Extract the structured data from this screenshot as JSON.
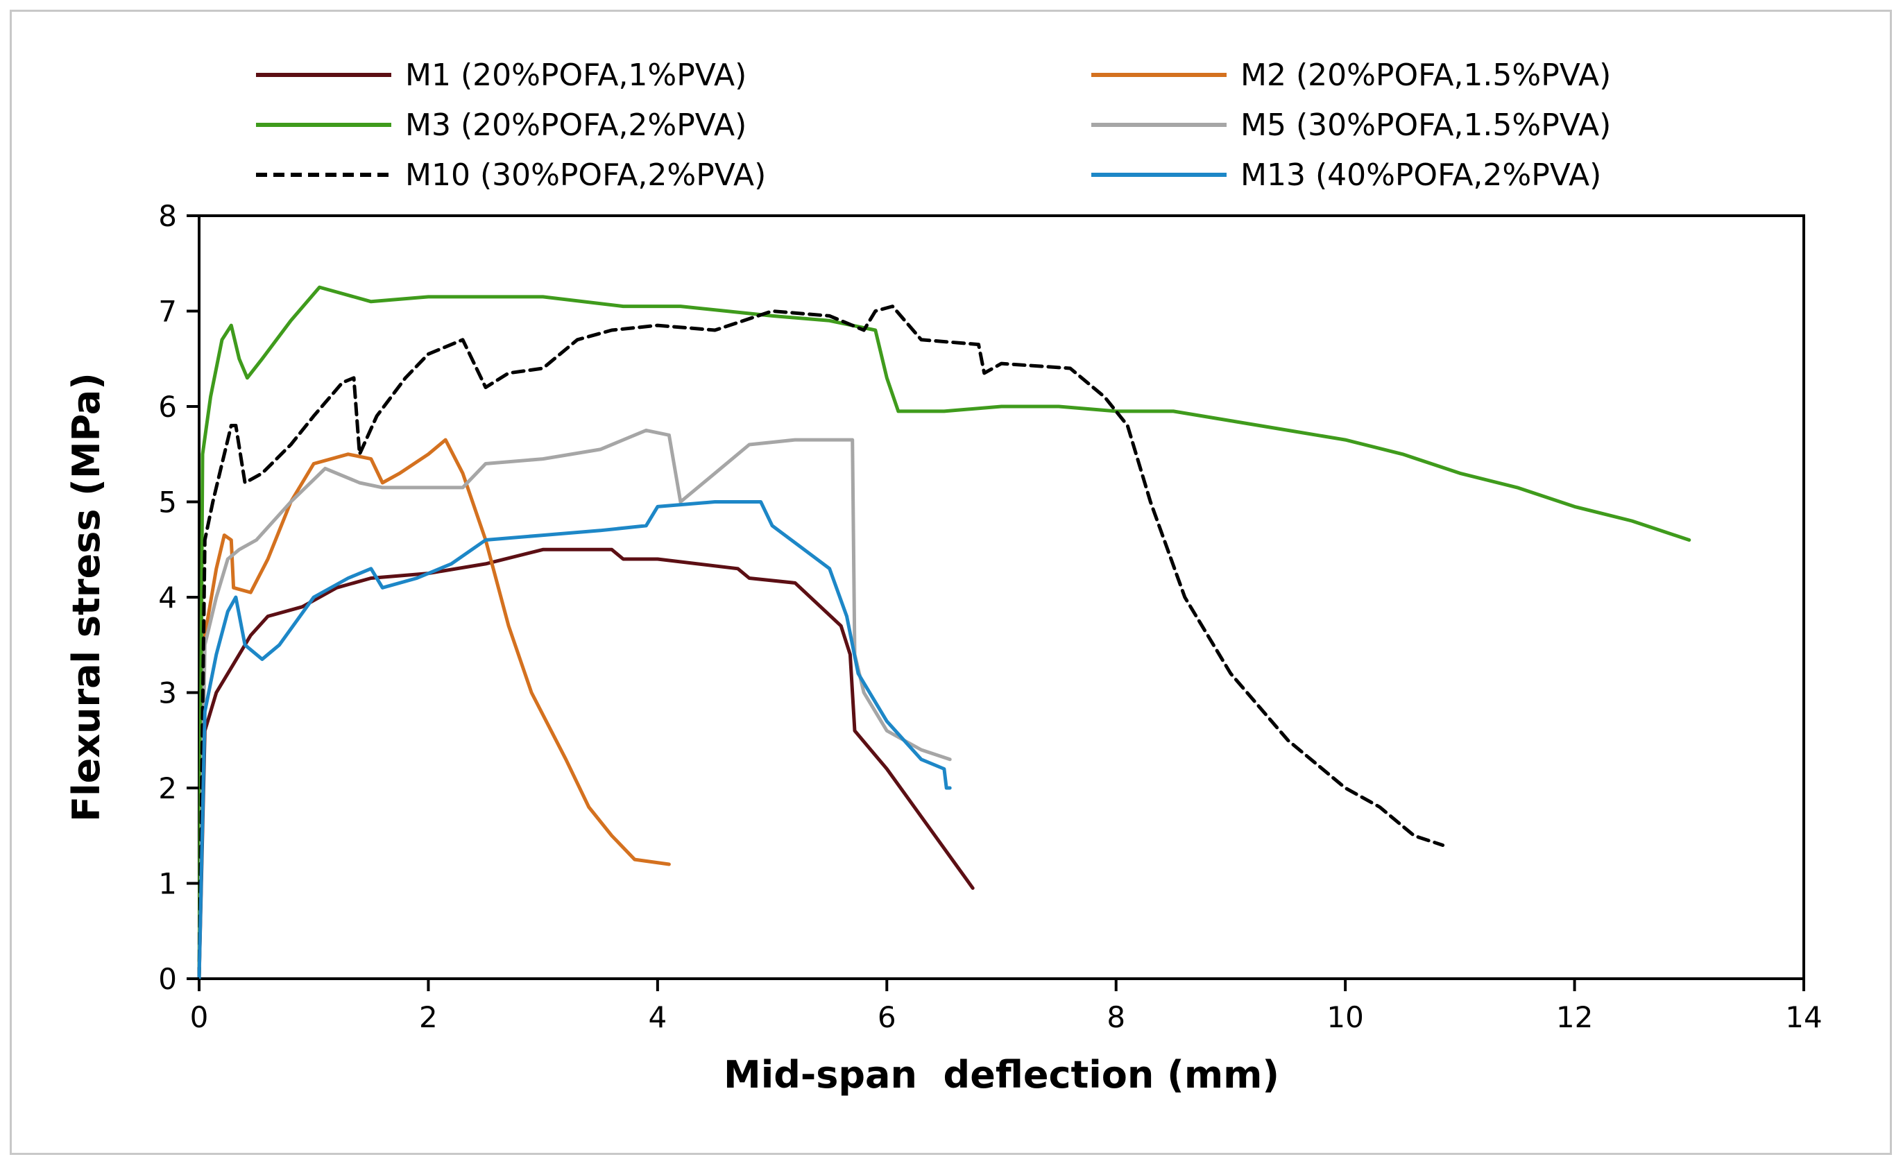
{
  "chart_data": {
    "type": "line",
    "title": "",
    "xlabel": "Mid-span  deflection (mm)",
    "ylabel": "Flexural stress (MPa)",
    "xlim": [
      0,
      14
    ],
    "ylim": [
      0,
      8
    ],
    "xticks": [
      0,
      2,
      4,
      6,
      8,
      10,
      12,
      14
    ],
    "yticks": [
      0,
      1,
      2,
      3,
      4,
      5,
      6,
      7,
      8
    ],
    "xtick_labels": [
      "0",
      "2",
      "4",
      "6",
      "8",
      "10",
      "12",
      "14"
    ],
    "ytick_labels": [
      "0",
      "1",
      "2",
      "3",
      "4",
      "5",
      "6",
      "7",
      "8"
    ],
    "grid": false,
    "legend_position": "top",
    "series": [
      {
        "name": "M1 (20%POFA,1%PVA)",
        "color": "#5c0f14",
        "dash": "solid",
        "x": [
          0,
          0.05,
          0.15,
          0.3,
          0.45,
          0.6,
          0.9,
          1.2,
          1.5,
          2.0,
          2.5,
          3.0,
          3.6,
          3.7,
          4.0,
          4.7,
          4.8,
          5.2,
          5.6,
          5.68,
          5.72,
          6.0,
          6.3,
          6.6,
          6.75
        ],
        "y": [
          0,
          2.6,
          3.0,
          3.3,
          3.6,
          3.8,
          3.9,
          4.1,
          4.2,
          4.25,
          4.35,
          4.5,
          4.5,
          4.4,
          4.4,
          4.3,
          4.2,
          4.15,
          3.7,
          3.4,
          2.6,
          2.2,
          1.7,
          1.2,
          0.95
        ]
      },
      {
        "name": "M2 (20%POFA,1.5%PVA)",
        "color": "#d4711f",
        "dash": "solid",
        "x": [
          0,
          0.05,
          0.15,
          0.22,
          0.28,
          0.3,
          0.45,
          0.6,
          0.8,
          1.0,
          1.3,
          1.5,
          1.6,
          1.75,
          2.0,
          2.15,
          2.3,
          2.5,
          2.7,
          2.9,
          3.2,
          3.4,
          3.6,
          3.8,
          4.1
        ],
        "y": [
          0,
          3.6,
          4.3,
          4.65,
          4.6,
          4.1,
          4.05,
          4.4,
          5.0,
          5.4,
          5.5,
          5.45,
          5.2,
          5.3,
          5.5,
          5.65,
          5.3,
          4.6,
          3.7,
          3.0,
          2.3,
          1.8,
          1.5,
          1.25,
          1.2
        ]
      },
      {
        "name": "M3 (20%POFA,2%PVA)",
        "color": "#3f9b1c",
        "dash": "solid",
        "x": [
          0,
          0.03,
          0.1,
          0.2,
          0.28,
          0.35,
          0.42,
          0.55,
          0.8,
          1.05,
          1.2,
          1.5,
          2.0,
          3.0,
          3.7,
          4.2,
          5.0,
          5.5,
          5.9,
          6.0,
          6.1,
          6.5,
          7.0,
          7.5,
          8.0,
          8.5,
          9.0,
          9.5,
          10.0,
          10.5,
          11.0,
          11.5,
          12.0,
          12.5,
          13.0
        ],
        "y": [
          0,
          5.5,
          6.1,
          6.7,
          6.85,
          6.5,
          6.3,
          6.5,
          6.9,
          7.25,
          7.2,
          7.1,
          7.15,
          7.15,
          7.05,
          7.05,
          6.95,
          6.9,
          6.8,
          6.3,
          5.95,
          5.95,
          6.0,
          6.0,
          5.95,
          5.95,
          5.85,
          5.75,
          5.65,
          5.5,
          5.3,
          5.15,
          4.95,
          4.8,
          4.6
        ]
      },
      {
        "name": "M5 (30%POFA,1.5%PVA)",
        "color": "#a6a6a6",
        "dash": "solid",
        "x": [
          0,
          0.05,
          0.15,
          0.25,
          0.35,
          0.5,
          0.8,
          1.1,
          1.4,
          1.6,
          1.8,
          2.3,
          2.5,
          3.0,
          3.5,
          3.9,
          4.1,
          4.2,
          4.5,
          4.8,
          5.2,
          5.7,
          5.72,
          5.8,
          6.0,
          6.3,
          6.55
        ],
        "y": [
          0,
          3.5,
          4.0,
          4.4,
          4.5,
          4.6,
          5.0,
          5.35,
          5.2,
          5.15,
          5.15,
          5.15,
          5.4,
          5.45,
          5.55,
          5.75,
          5.7,
          5.0,
          5.3,
          5.6,
          5.65,
          5.65,
          3.4,
          3.0,
          2.6,
          2.4,
          2.3
        ]
      },
      {
        "name": "M10 (30%POFA,2%PVA)",
        "color": "#000000",
        "dash": "dashed",
        "x": [
          0,
          0.05,
          0.12,
          0.2,
          0.28,
          0.32,
          0.4,
          0.55,
          0.8,
          1.0,
          1.25,
          1.35,
          1.4,
          1.55,
          1.8,
          2.0,
          2.3,
          2.5,
          2.7,
          3.0,
          3.3,
          3.6,
          4.0,
          4.5,
          5.0,
          5.5,
          5.8,
          5.9,
          6.05,
          6.3,
          6.8,
          6.85,
          7.0,
          7.6,
          7.9,
          8.1,
          8.3,
          8.6,
          9.0,
          9.5,
          10.0,
          10.3,
          10.6,
          10.85
        ],
        "y": [
          0,
          4.6,
          5.0,
          5.4,
          5.8,
          5.8,
          5.2,
          5.3,
          5.6,
          5.9,
          6.25,
          6.3,
          5.5,
          5.9,
          6.3,
          6.55,
          6.7,
          6.2,
          6.35,
          6.4,
          6.7,
          6.8,
          6.85,
          6.8,
          7.0,
          6.95,
          6.8,
          7.0,
          7.05,
          6.7,
          6.65,
          6.35,
          6.45,
          6.4,
          6.1,
          5.8,
          5.0,
          4.0,
          3.2,
          2.5,
          2.0,
          1.8,
          1.5,
          1.4
        ]
      },
      {
        "name": "M13 (40%POFA,2%PVA)",
        "color": "#1d87c7",
        "dash": "solid",
        "x": [
          0,
          0.05,
          0.15,
          0.25,
          0.32,
          0.4,
          0.55,
          0.7,
          1.0,
          1.3,
          1.5,
          1.6,
          1.9,
          2.2,
          2.5,
          3.0,
          3.5,
          3.9,
          4.0,
          4.5,
          4.9,
          5.0,
          5.5,
          5.65,
          5.75,
          6.0,
          6.3,
          6.5,
          6.52,
          6.55
        ],
        "y": [
          0,
          2.8,
          3.4,
          3.85,
          4.0,
          3.5,
          3.35,
          3.5,
          4.0,
          4.2,
          4.3,
          4.1,
          4.2,
          4.35,
          4.6,
          4.65,
          4.7,
          4.75,
          4.95,
          5.0,
          5.0,
          4.75,
          4.3,
          3.8,
          3.2,
          2.7,
          2.3,
          2.2,
          2.0,
          2.0
        ]
      }
    ]
  }
}
